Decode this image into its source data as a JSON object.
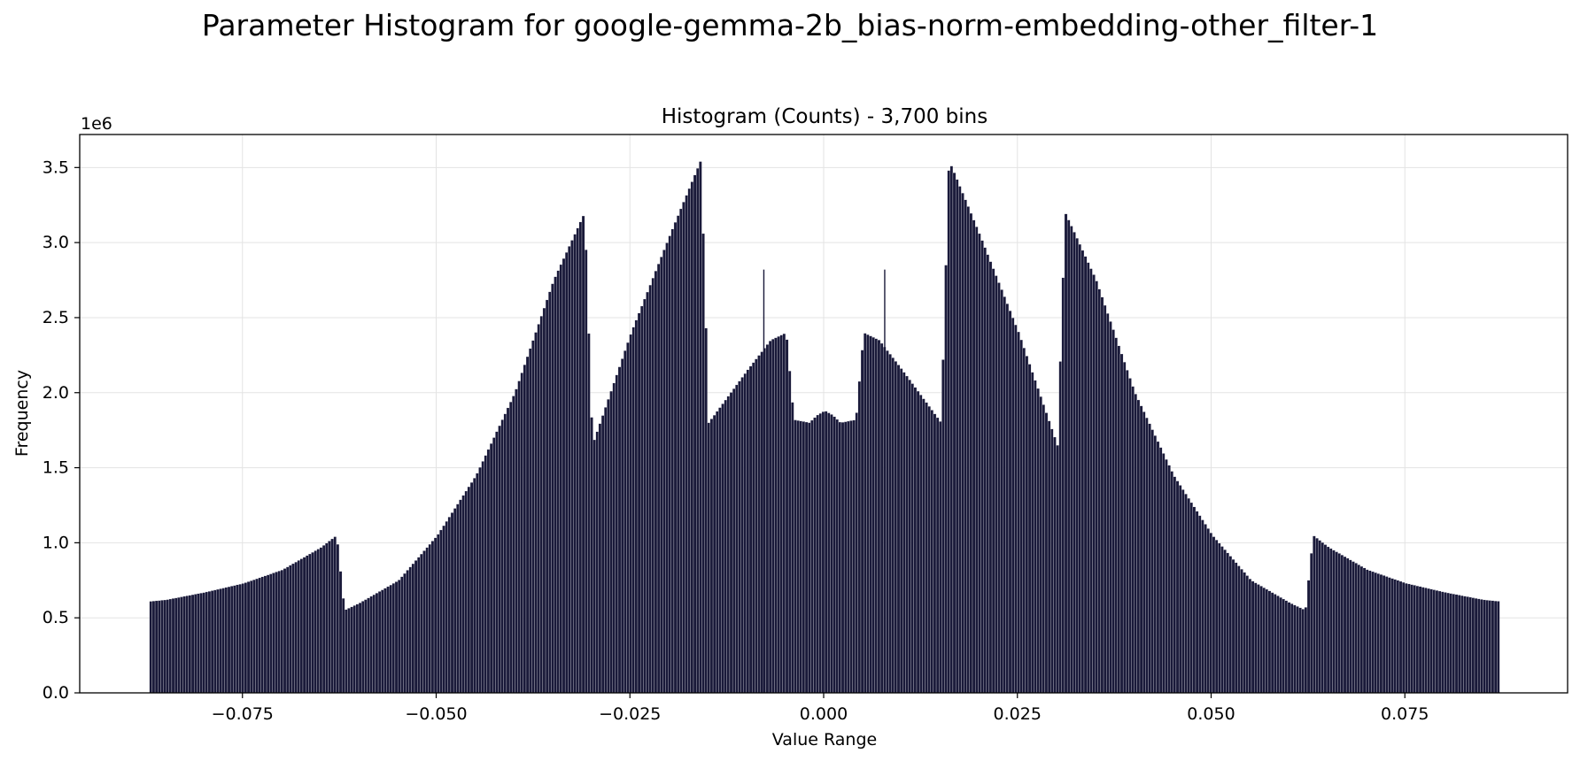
{
  "chart_data": {
    "type": "bar",
    "title": "Parameter Histogram for google-gemma-2b_bias-norm-embedding-other_filter-1",
    "subtitle": "Histogram (Counts) - 3,700 bins",
    "xlabel": "Value Range",
    "ylabel": "Frequency",
    "y_offset_label": "1e6",
    "xlim": [
      -0.096,
      0.096
    ],
    "ylim": [
      0,
      3.72
    ],
    "y_unit_multiplier": 1000000,
    "x_ticks": [
      -0.075,
      -0.05,
      -0.025,
      0.0,
      0.025,
      0.05,
      0.075
    ],
    "x_tick_labels": [
      "−0.075",
      "−0.050",
      "−0.025",
      "0.000",
      "0.025",
      "0.050",
      "0.075"
    ],
    "y_ticks": [
      0.0,
      0.5,
      1.0,
      1.5,
      2.0,
      2.5,
      3.0,
      3.5
    ],
    "y_tick_labels": [
      "0.0",
      "0.5",
      "1.0",
      "1.5",
      "2.0",
      "2.5",
      "3.0",
      "3.5"
    ],
    "grid": true,
    "bar_color": "#1a1a3a",
    "bar_edge_color": "#ffffff",
    "envelope_points_x": [
      0.0,
      0.001,
      0.002,
      0.004,
      0.005,
      0.007,
      0.01,
      0.015,
      0.016,
      0.02,
      0.025,
      0.03,
      0.031,
      0.035,
      0.04,
      0.045,
      0.05,
      0.055,
      0.06,
      0.062,
      0.063,
      0.065,
      0.07,
      0.075,
      0.08,
      0.085,
      0.087
    ],
    "envelope_points_y_1e6": [
      1.88,
      1.85,
      1.8,
      1.82,
      2.4,
      2.35,
      2.15,
      1.8,
      3.55,
      3.05,
      2.4,
      1.65,
      3.2,
      2.75,
      2.0,
      1.45,
      1.05,
      0.75,
      0.6,
      0.55,
      1.05,
      0.97,
      0.82,
      0.73,
      0.67,
      0.62,
      0.61
    ],
    "spikes_x": [
      -0.0078,
      0.0078
    ],
    "spikes_y_1e6": [
      2.82,
      2.82
    ]
  }
}
